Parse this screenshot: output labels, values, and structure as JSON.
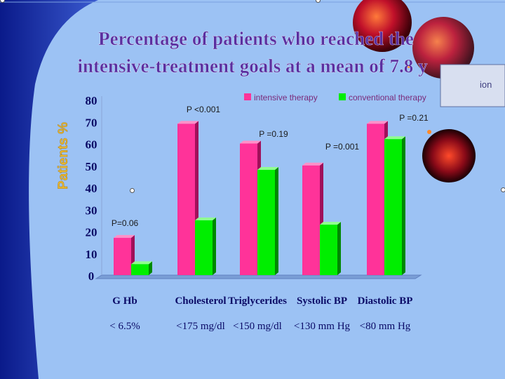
{
  "slide": {
    "title_line1": "Percentage of patients who reached the",
    "title_line2": "intensive-treatment goals at a mean of 7.8 y",
    "ylabel": "Patients %",
    "right_fragment": "ion"
  },
  "colors": {
    "background": "#9cc2f4",
    "intensive": "#ff3399",
    "conventional": "#00ee00",
    "title": "#5a2fa0",
    "ylabel": "#e8b830",
    "axis_text": "#0a0a66",
    "legend_text": "#7a2a7a"
  },
  "chart_data": {
    "type": "bar",
    "categories": [
      "G Hb",
      "Cholesterol",
      "Triglycerides",
      "Systolic BP",
      "Diastolic BP"
    ],
    "category_goals": [
      "<  6.5%",
      "<175 mg/dl",
      "<150 mg/dl",
      "<130 mm Hg",
      "<80 mm Hg"
    ],
    "series": [
      {
        "name": "intensive therapy",
        "values": [
          17,
          69,
          60,
          50,
          69
        ]
      },
      {
        "name": "conventional therapy",
        "values": [
          5,
          25,
          48,
          23,
          62
        ]
      }
    ],
    "ylabel": "Patients %",
    "ylim": [
      0,
      80
    ],
    "yticks": [
      0,
      10,
      20,
      30,
      40,
      50,
      60,
      70,
      80
    ],
    "pvalues": [
      "P=0.06",
      "P <0.001",
      "P =0.19",
      "P =0.001",
      "P =0.21"
    ],
    "legend_position": "top",
    "grid": false
  }
}
